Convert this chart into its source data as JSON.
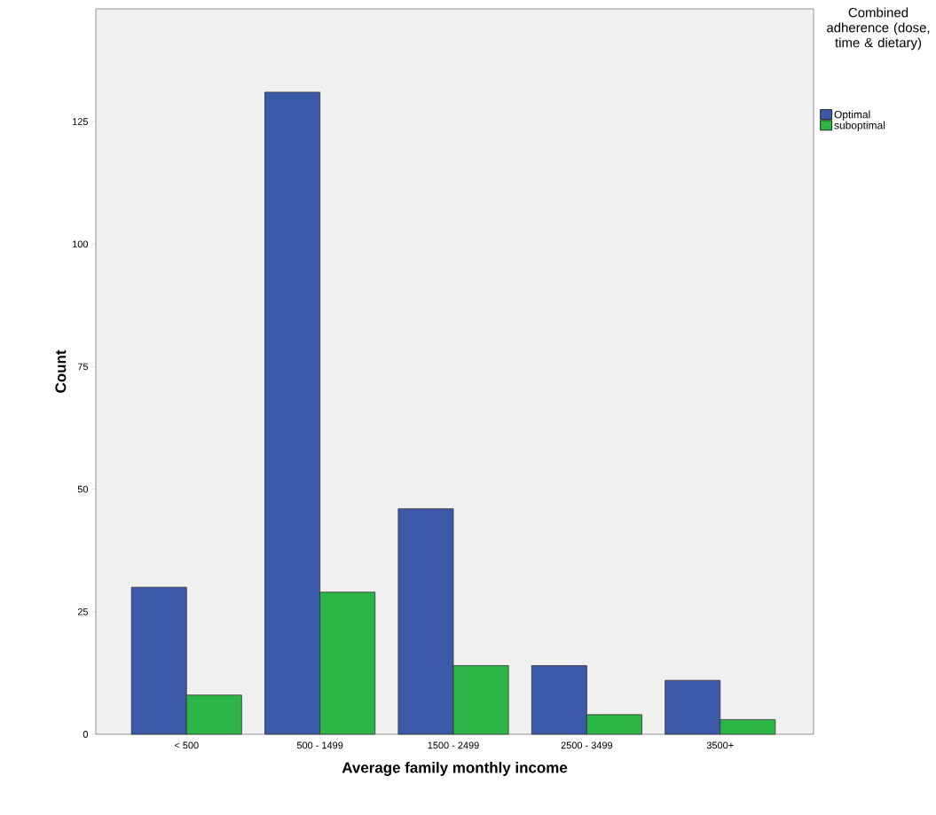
{
  "chart_data": {
    "type": "bar",
    "xlabel": "Average family monthly income",
    "ylabel": "Count",
    "legend_title": "Combined adherence (dose, time & dietary)",
    "categories": [
      "< 500",
      "500 - 1499",
      "1500 - 2499",
      "2500 - 3499",
      "3500+"
    ],
    "series": [
      {
        "name": "Optimal",
        "color": "#3c58a8",
        "values": [
          30,
          131,
          46,
          14,
          11
        ]
      },
      {
        "name": "suboptimal",
        "color": "#2eb548",
        "values": [
          8,
          29,
          14,
          4,
          3
        ]
      }
    ],
    "ylim": [
      0,
      148
    ],
    "yticks": [
      0,
      25,
      50,
      75,
      100,
      125
    ],
    "grid": false,
    "legend": "top right"
  }
}
